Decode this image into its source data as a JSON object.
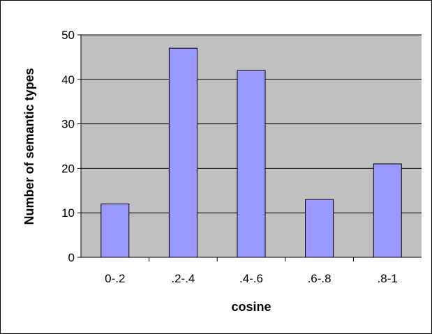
{
  "chart_data": {
    "type": "bar",
    "title": "",
    "xlabel": "cosine",
    "ylabel": "Number of semantic types",
    "categories": [
      "0-.2",
      ".2-.4",
      ".4-.6",
      ".6-.8",
      ".8-1"
    ],
    "values": [
      12,
      47,
      42,
      13,
      21
    ],
    "ylim": [
      0,
      50
    ],
    "yticks": [
      0,
      10,
      20,
      30,
      40,
      50
    ],
    "grid": true,
    "legend": "none",
    "colors": {
      "plot_background": "#c0c0c0",
      "bar_fill": "#9999ff",
      "bar_stroke": "#000000",
      "gridline": "#000000"
    }
  }
}
